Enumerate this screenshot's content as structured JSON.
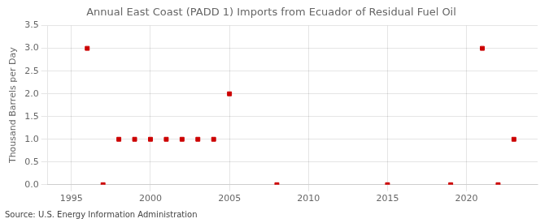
{
  "chart_data": {
    "type": "scatter",
    "title": "Annual East Coast (PADD 1) Imports from Ecuador of Residual Fuel Oil",
    "y_label": "Thousand Barrels per Day",
    "annotations": [
      "Source: U.S. Energy Information Administration"
    ],
    "x": [
      1996,
      1997,
      1998,
      1999,
      2000,
      2001,
      2002,
      2003,
      2004,
      2005,
      2008,
      2015,
      2019,
      2021,
      2022,
      2023
    ],
    "values": [
      3.0,
      0.0,
      1.0,
      1.0,
      1.0,
      1.0,
      1.0,
      1.0,
      1.0,
      2.0,
      0.0,
      0.0,
      0.0,
      3.0,
      0.0,
      1.0
    ],
    "color": "#cc0000",
    "marker": "square",
    "xlim": [
      1993.5,
      2024.5
    ],
    "xticks": [
      1995,
      2000,
      2005,
      2010,
      2015,
      2020
    ],
    "ylim": [
      0.0,
      3.5
    ],
    "yticks": [
      {
        "value": 0.0,
        "label": "0.0"
      },
      {
        "value": 0.5,
        "label": "0.5"
      },
      {
        "value": 1.0,
        "label": "1.0"
      },
      {
        "value": 1.5,
        "label": "1.5"
      },
      {
        "value": 2.0,
        "label": "2.0"
      },
      {
        "value": 2.5,
        "label": "2.5"
      },
      {
        "value": 3.0,
        "label": "3.0"
      },
      {
        "value": 3.5,
        "label": "3.5"
      }
    ],
    "grid": true
  }
}
